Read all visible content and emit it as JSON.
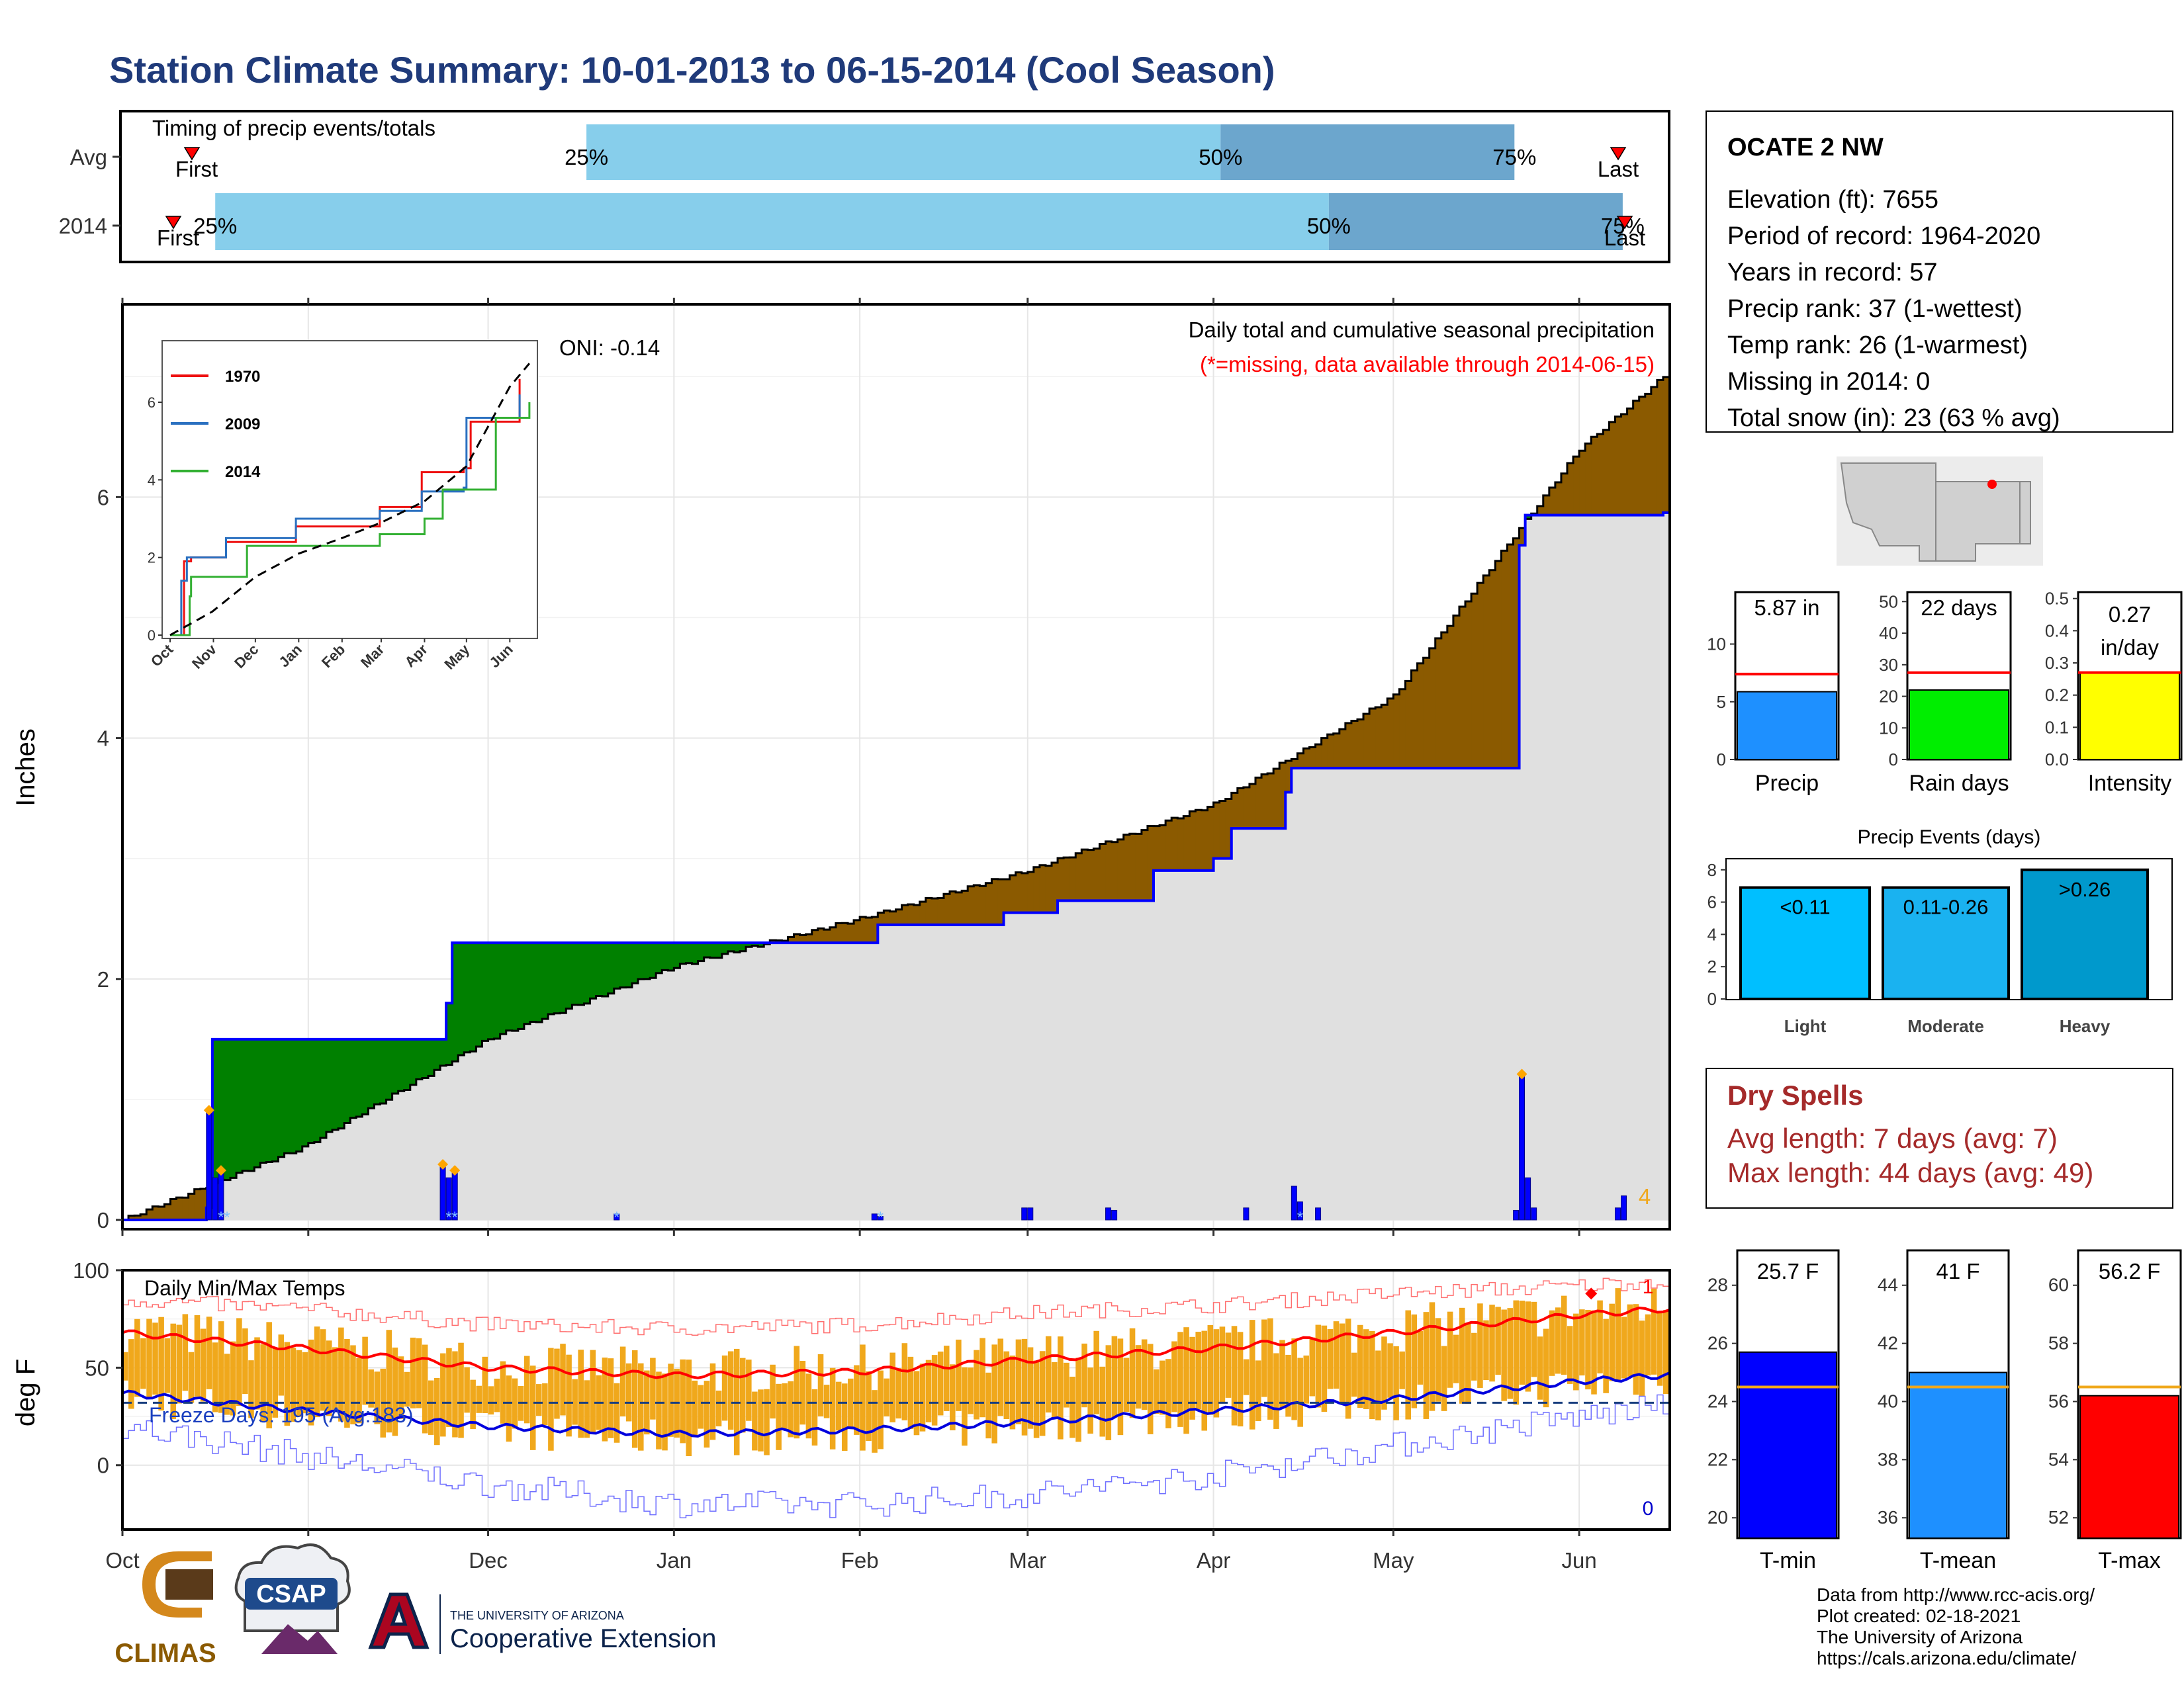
{
  "title": "Station Climate Summary: 10-01-2013 to 06-15-2014 (Cool Season)",
  "colors": {
    "title": "#1f3a7a",
    "light_blue": "#87ceeb",
    "mid_blue": "#6ca6cd",
    "brown": "#8b5a00",
    "green": "#008000",
    "gray_fill": "#e0e0e0",
    "cum_line": "#0000ff",
    "orange": "#f0a81c",
    "red": "#ff0000",
    "dark_red": "#a52a2a"
  },
  "timing_panel": {
    "heading": "Timing of precip events/totals",
    "rows": [
      {
        "label": "Avg",
        "pcts": [
          "25%",
          "50%",
          "75%"
        ],
        "first": "First",
        "last": "Last"
      },
      {
        "label": "2014",
        "pcts": [
          "25%",
          "50%",
          "75%"
        ],
        "first": "First",
        "last": "Last"
      }
    ]
  },
  "precip_panel": {
    "ylabel": "Inches",
    "yticks": [
      "0",
      "2",
      "4",
      "6"
    ],
    "oni": "ONI: -0.14",
    "legend_line1": "Daily total and cumulative seasonal precipitation",
    "legend_line2": "(*=missing, data available through 2014-06-15)",
    "count_label": "4"
  },
  "inset": {
    "yticks": [
      "0",
      "2",
      "4",
      "6"
    ],
    "months": [
      "Oct",
      "Nov",
      "Dec",
      "Jan",
      "Feb",
      "Mar",
      "Apr",
      "May",
      "Jun"
    ],
    "legend": [
      {
        "name": "1970",
        "color": "#ee1111"
      },
      {
        "name": "2009",
        "color": "#2a70c0"
      },
      {
        "name": "2014",
        "color": "#33b033"
      }
    ]
  },
  "temp_panel": {
    "ylabel": "deg F",
    "yticks": [
      "0",
      "50",
      "100"
    ],
    "heading": "Daily Min/Max Temps",
    "freeze": "Freeze Days: 195 (Avg:183)",
    "record_high_count": "1",
    "record_low_count": "0"
  },
  "months": [
    "Oct",
    "Nov",
    "Dec",
    "Jan",
    "Feb",
    "Mar",
    "Apr",
    "May",
    "Jun"
  ],
  "station": {
    "name": "OCATE 2 NW",
    "lines": [
      "Elevation (ft): 7655",
      "Period of record: 1964-2020",
      "Years in record: 57",
      "Precip rank: 37 (1-wettest)",
      "Temp rank: 26 (1-warmest)",
      "Missing in 2014: 0",
      "Total snow (in): 23 (63 % avg)"
    ]
  },
  "mini_bars": [
    {
      "label": "Precip",
      "value_text": "5.87 in",
      "value": 5.87,
      "avg": 7.4,
      "ymax": 14.5,
      "ticks": [
        "0",
        "5",
        "10"
      ],
      "tick_values": [
        0,
        5,
        10
      ],
      "color": "#1e90ff"
    },
    {
      "label": "Rain days",
      "value_text": "22 days",
      "value": 22,
      "avg": 27.5,
      "ymax": 53,
      "ticks": [
        "0",
        "10",
        "20",
        "30",
        "40",
        "50"
      ],
      "tick_values": [
        0,
        10,
        20,
        30,
        40,
        50
      ],
      "color": "#00ee00"
    },
    {
      "label": "Intensity",
      "value_text": "0.27 in/day",
      "value_line1": "0.27",
      "value_line2": "in/day",
      "value": 0.27,
      "avg": 0.27,
      "ymax": 0.52,
      "ticks": [
        "0.0",
        "0.1",
        "0.2",
        "0.3",
        "0.4",
        "0.5"
      ],
      "tick_values": [
        0,
        0.1,
        0.2,
        0.3,
        0.4,
        0.5
      ],
      "color": "#ffff00"
    }
  ],
  "precip_events": {
    "title": "Precip Events (days)",
    "ticks": [
      "0",
      "2",
      "4",
      "6",
      "8"
    ],
    "bars": [
      {
        "label": "Light",
        "range": "<0.11",
        "value": 6.9,
        "color": "#00bfff"
      },
      {
        "label": "Moderate",
        "range": "0.11-0.26",
        "value": 6.9,
        "color": "#1ab2f0"
      },
      {
        "label": "Heavy",
        "range": ">0.26",
        "value": 8,
        "color": "#0099cc"
      }
    ]
  },
  "dry_spells": {
    "title": "Dry Spells",
    "line1": "Avg length: 7 days (avg: 7)",
    "line2": "Max length: 44 days (avg: 49)"
  },
  "temp_bars": [
    {
      "label": "T-min",
      "value_text": "25.7 F",
      "value": 25.7,
      "avg": 24.5,
      "ymin": 19.3,
      "ymax": 29.2,
      "ticks": [
        "20",
        "22",
        "24",
        "26",
        "28"
      ],
      "tick_values": [
        20,
        22,
        24,
        26,
        28
      ],
      "color": "#0000ff"
    },
    {
      "label": "T-mean",
      "value_text": "41 F",
      "value": 41,
      "avg": 40.5,
      "ymin": 35.3,
      "ymax": 45.2,
      "ticks": [
        "36",
        "38",
        "40",
        "42",
        "44"
      ],
      "tick_values": [
        36,
        38,
        40,
        42,
        44
      ],
      "color": "#1e90ff"
    },
    {
      "label": "T-max",
      "value_text": "56.2 F",
      "value": 56.2,
      "avg": 56.5,
      "ymin": 51.3,
      "ymax": 61.2,
      "ticks": [
        "52",
        "54",
        "56",
        "58",
        "60"
      ],
      "tick_values": [
        52,
        54,
        56,
        58,
        60
      ],
      "color": "#ff0000"
    }
  ],
  "credits": [
    "Data from http://www.rcc-acis.org/",
    "Plot created: 02-18-2021",
    "The University of Arizona",
    "https://cals.arizona.edu/climate/"
  ],
  "logos": {
    "climas": "CLIMAS",
    "csap": "CSAP",
    "ua_line1": "THE UNIVERSITY OF ARIZONA",
    "ua_line2": "Cooperative Extension"
  },
  "chart_data": [
    {
      "type": "bar",
      "name": "timing",
      "categories": [
        "Avg",
        "2014"
      ],
      "series": [
        {
          "name": "25%",
          "values": [
            0.3,
            0.06
          ]
        },
        {
          "name": "50%",
          "values": [
            0.71,
            0.78
          ]
        },
        {
          "name": "75%",
          "values": [
            0.9,
            0.97
          ]
        }
      ]
    },
    {
      "type": "area",
      "name": "cumulative precipitation",
      "ylabel": "Inches",
      "ylim": [
        0,
        7.6
      ],
      "x_months": [
        "Oct",
        "Nov",
        "Dec",
        "Jan",
        "Feb",
        "Mar",
        "Apr",
        "May",
        "Jun"
      ],
      "avg_cumulative": {
        "day": [
          0,
          30,
          61,
          92,
          123,
          151,
          182,
          212,
          243,
          257
        ],
        "value": [
          0,
          0.6,
          1.5,
          2.1,
          2.5,
          2.9,
          3.45,
          4.35,
          6.4,
          7.0
        ]
      },
      "observed_cumulative": {
        "day": [
          0,
          14,
          15,
          53,
          54,
          55,
          110,
          121,
          126,
          147,
          156,
          172,
          182,
          185,
          194,
          195,
          224,
          233,
          234,
          257
        ],
        "value": [
          0,
          0.1,
          1.5,
          1.5,
          1.8,
          2.3,
          2.3,
          2.3,
          2.45,
          2.55,
          2.65,
          2.9,
          3.0,
          3.25,
          3.55,
          3.75,
          3.75,
          5.6,
          5.85,
          5.87
        ]
      },
      "daily_totals": {
        "day": [
          14,
          15,
          16,
          53,
          54,
          55,
          82,
          125,
          126,
          150,
          151,
          164,
          165,
          187,
          195,
          196,
          199,
          232,
          233,
          234,
          235,
          249,
          250
        ],
        "value": [
          0.9,
          0.35,
          0.4,
          0.45,
          0.35,
          0.4,
          0.05,
          0.05,
          0.03,
          0.1,
          0.1,
          0.1,
          0.08,
          0.1,
          0.28,
          0.15,
          0.1,
          0.08,
          1.2,
          0.35,
          0.1,
          0.1,
          0.2
        ]
      }
    },
    {
      "type": "line",
      "name": "inset cumulative by year",
      "ylim": [
        0,
        7.5
      ],
      "series": [
        {
          "name": "1970",
          "x": [
            0,
            10,
            15,
            40,
            90,
            150,
            180,
            210,
            215,
            250
          ],
          "values": [
            0,
            1.9,
            2.0,
            2.4,
            2.8,
            3.3,
            4.2,
            4.3,
            5.5,
            6.6
          ]
        },
        {
          "name": "2009",
          "x": [
            0,
            8,
            12,
            40,
            90,
            150,
            180,
            210,
            212,
            250
          ],
          "values": [
            0,
            1.4,
            2.0,
            2.5,
            3.0,
            3.2,
            3.7,
            3.8,
            5.6,
            6.2
          ]
        },
        {
          "name": "2014",
          "x": [
            0,
            14,
            15,
            55,
            110,
            150,
            182,
            195,
            233,
            257
          ],
          "values": [
            0,
            1.0,
            1.5,
            2.3,
            2.3,
            2.6,
            3.0,
            3.75,
            5.6,
            6.0
          ]
        },
        {
          "name": "avg",
          "x": [
            0,
            30,
            61,
            92,
            123,
            151,
            182,
            212,
            243,
            257
          ],
          "values": [
            0,
            0.6,
            1.5,
            2.1,
            2.5,
            2.9,
            3.45,
            4.35,
            6.4,
            7.0
          ]
        }
      ]
    },
    {
      "type": "line",
      "name": "daily temps",
      "ylabel": "deg F",
      "ylim": [
        -33,
        100
      ],
      "freeze_line": 32,
      "avg_max": {
        "day": [
          0,
          30,
          61,
          92,
          123,
          151,
          182,
          212,
          243,
          257
        ],
        "value": [
          68,
          60,
          50,
          46,
          48,
          54,
          60,
          68,
          77,
          80
        ]
      },
      "avg_min": {
        "day": [
          0,
          30,
          61,
          92,
          123,
          151,
          182,
          212,
          243,
          257
        ],
        "value": [
          37,
          28,
          20,
          16,
          18,
          22,
          28,
          34,
          43,
          46
        ]
      },
      "record_max": {
        "day": [
          0,
          30,
          61,
          92,
          123,
          151,
          182,
          212,
          243,
          257
        ],
        "value": [
          85,
          80,
          72,
          70,
          72,
          78,
          82,
          88,
          92,
          95
        ]
      },
      "record_min": {
        "day": [
          0,
          30,
          61,
          92,
          123,
          151,
          182,
          212,
          243,
          257
        ],
        "value": [
          20,
          5,
          -10,
          -20,
          -20,
          -15,
          -5,
          10,
          25,
          30
        ]
      }
    }
  ]
}
